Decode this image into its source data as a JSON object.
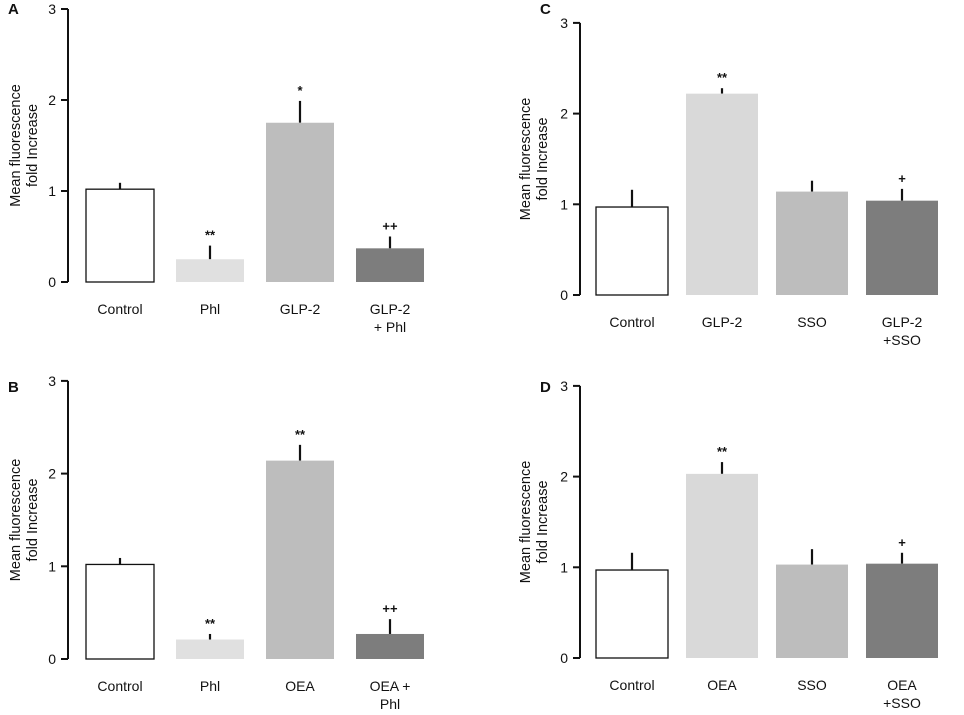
{
  "chart_data": [
    {
      "panel": "A",
      "type": "bar",
      "categories": [
        "Control",
        "Phl",
        "GLP-2",
        "GLP-2\n+ Phl"
      ],
      "values": [
        1.02,
        0.25,
        1.75,
        0.37
      ],
      "errors": [
        0.07,
        0.15,
        0.24,
        0.13
      ],
      "significance": [
        "",
        "**",
        "*",
        "++"
      ],
      "colors": [
        "#ffffff",
        "#e0e0e0",
        "#bdbdbd",
        "#7d7d7d"
      ],
      "ylabel": "Mean fluorescence\nfold Increase",
      "xlabel": "",
      "ylim": [
        0,
        3
      ],
      "yticks": [
        0,
        1,
        2,
        3
      ]
    },
    {
      "panel": "B",
      "type": "bar",
      "categories": [
        "Control",
        "Phl",
        "OEA",
        "OEA +\nPhl"
      ],
      "values": [
        1.02,
        0.21,
        2.14,
        0.27
      ],
      "errors": [
        0.07,
        0.06,
        0.17,
        0.16
      ],
      "significance": [
        "",
        "**",
        "**",
        "++"
      ],
      "colors": [
        "#ffffff",
        "#e0e0e0",
        "#bdbdbd",
        "#7d7d7d"
      ],
      "ylabel": "Mean fluorescence\nfold Increase",
      "xlabel": "",
      "ylim": [
        0,
        3
      ],
      "yticks": [
        0,
        1,
        2,
        3
      ]
    },
    {
      "panel": "C",
      "type": "bar",
      "categories": [
        "Control",
        "GLP-2",
        "SSO",
        "GLP-2\n+SSO"
      ],
      "values": [
        0.97,
        2.22,
        1.14,
        1.04
      ],
      "errors": [
        0.19,
        0.06,
        0.12,
        0.13
      ],
      "significance": [
        "",
        "**",
        "",
        "+"
      ],
      "colors": [
        "#ffffff",
        "#d9d9d9",
        "#bdbdbd",
        "#7d7d7d"
      ],
      "ylabel": "Mean fluorescence\nfold Increase",
      "xlabel": "",
      "ylim": [
        0,
        3
      ],
      "yticks": [
        0,
        1,
        2,
        3
      ]
    },
    {
      "panel": "D",
      "type": "bar",
      "categories": [
        "Control",
        "OEA",
        "SSO",
        "OEA\n+SSO"
      ],
      "values": [
        0.97,
        2.03,
        1.03,
        1.04
      ],
      "errors": [
        0.19,
        0.13,
        0.17,
        0.12
      ],
      "significance": [
        "",
        "**",
        "",
        "+"
      ],
      "colors": [
        "#ffffff",
        "#d9d9d9",
        "#bdbdbd",
        "#7d7d7d"
      ],
      "ylabel": "Mean fluorescence\nfold Increase",
      "xlabel": "",
      "ylim": [
        0,
        3
      ],
      "yticks": [
        0,
        1,
        2,
        3
      ]
    }
  ]
}
